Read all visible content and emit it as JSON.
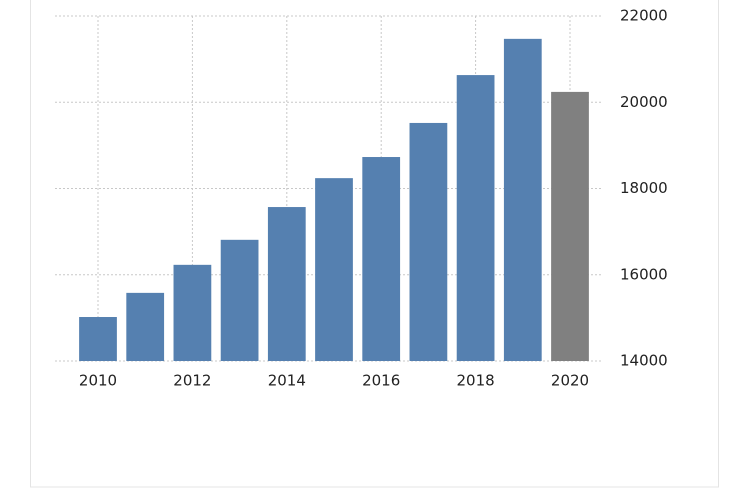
{
  "chart_data": {
    "type": "bar",
    "categories": [
      "2010",
      null,
      "2012",
      null,
      "2014",
      null,
      "2016",
      null,
      "2018",
      null,
      "2020"
    ],
    "values": [
      15020,
      15580,
      16230,
      16810,
      17570,
      18240,
      18730,
      19520,
      20630,
      21470,
      20240
    ],
    "colors": [
      "#5580b0",
      "#5580b0",
      "#5580b0",
      "#5580b0",
      "#5580b0",
      "#5580b0",
      "#5580b0",
      "#5580b0",
      "#5580b0",
      "#5580b0",
      "#808080"
    ],
    "ylim": [
      14000,
      22000
    ],
    "yticks": [
      14000,
      16000,
      18000,
      20000,
      22000
    ],
    "grid": true
  }
}
